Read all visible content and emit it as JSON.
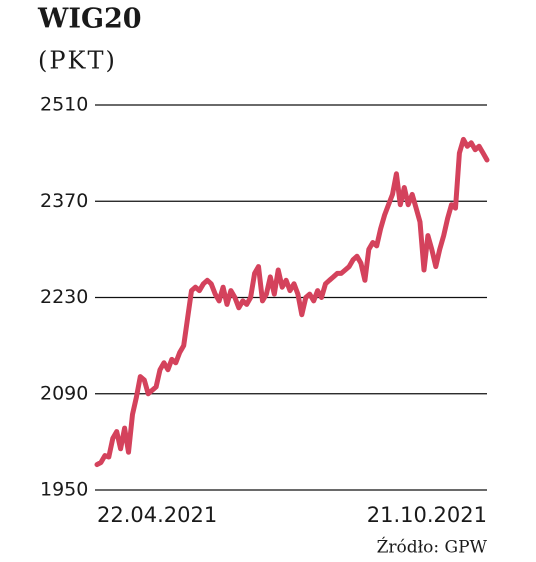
{
  "chart_data": {
    "type": "line",
    "title": "WIG20",
    "subtitle": "(PKT)",
    "source": "Źródło: GPW",
    "categories": [
      "22.04.2021",
      null,
      null,
      null,
      null,
      null,
      null,
      null,
      null,
      null,
      null,
      null,
      null,
      null,
      null,
      null,
      null,
      null,
      null,
      null,
      null,
      null,
      null,
      null,
      null,
      null,
      null,
      null,
      null,
      null,
      null,
      null,
      null,
      null,
      null,
      null,
      null,
      null,
      null,
      null,
      null,
      null,
      null,
      null,
      null,
      null,
      null,
      null,
      null,
      null,
      null,
      null,
      null,
      null,
      null,
      null,
      null,
      null,
      null,
      null,
      null,
      null,
      null,
      null,
      null,
      null,
      null,
      null,
      null,
      null,
      null,
      null,
      null,
      null,
      null,
      null,
      null,
      null,
      null,
      null,
      null,
      null,
      null,
      null,
      null,
      null,
      null,
      null,
      null,
      null,
      null,
      null,
      null,
      null,
      null,
      null,
      null,
      null,
      null,
      "21.10.2021"
    ],
    "series": [
      {
        "color": "#d4425c",
        "values": [
          1987,
          1990,
          2000,
          1998,
          2025,
          2035,
          2010,
          2040,
          2005,
          2060,
          2085,
          2115,
          2110,
          2090,
          2095,
          2100,
          2125,
          2135,
          2125,
          2140,
          2135,
          2150,
          2160,
          2200,
          2240,
          2245,
          2240,
          2250,
          2255,
          2250,
          2235,
          2225,
          2245,
          2220,
          2240,
          2230,
          2215,
          2225,
          2220,
          2230,
          2265,
          2275,
          2225,
          2235,
          2260,
          2235,
          2270,
          2245,
          2255,
          2240,
          2250,
          2235,
          2205,
          2230,
          2235,
          2225,
          2240,
          2230,
          2250,
          2255,
          2260,
          2265,
          2265,
          2270,
          2275,
          2285,
          2290,
          2280,
          2255,
          2300,
          2310,
          2305,
          2330,
          2350,
          2365,
          2380,
          2410,
          2365,
          2390,
          2365,
          2380,
          2360,
          2340,
          2270,
          2320,
          2300,
          2275,
          2300,
          2320,
          2345,
          2365,
          2360,
          2440,
          2460,
          2450,
          2455,
          2445,
          2450,
          2440,
          2430
        ]
      }
    ],
    "ylim": [
      1950,
      2510
    ],
    "yticks": [
      1950,
      2090,
      2230,
      2370,
      2510
    ],
    "grid": true
  }
}
